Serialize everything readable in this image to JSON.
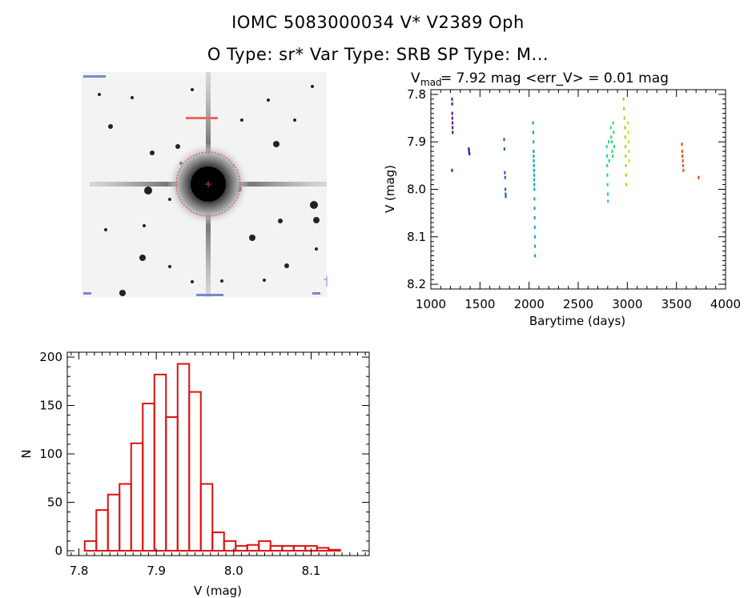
{
  "header": {
    "line1": "IOMC 5083000034    V* V2389 Oph",
    "line2": "O Type: sr*  Var Type: SRB  SP Type: M..."
  },
  "colors": {
    "histogram": "#dd1111",
    "aperture": "#ee3333",
    "axes": "#000000"
  },
  "lightcurve_header": {
    "v": "V",
    "sub": "mad",
    "text": " = 7.92 mag <err_V> = 0.01 mag"
  },
  "chart_data": [
    {
      "type": "scatter",
      "xlabel": "Barytime (days)",
      "ylabel": "V (mag)",
      "xlim": [
        1000,
        4000
      ],
      "ylim": [
        8.21,
        7.79
      ],
      "y_inverted": true,
      "xticks": [
        1000,
        1500,
        2000,
        2500,
        3000,
        3500,
        4000
      ],
      "yticks": [
        7.8,
        7.9,
        8.0,
        8.1,
        8.2
      ],
      "ytick_labels": [
        "7.8",
        "7.9",
        "8.0",
        "8.1",
        "8.2"
      ],
      "series": [
        {
          "color": "#552288",
          "points": [
            [
              1215,
              7.81
            ],
            [
              1216,
              7.82
            ],
            [
              1217,
              7.84
            ],
            [
              1218,
              7.85
            ],
            [
              1219,
              7.86
            ],
            [
              1220,
              7.87
            ],
            [
              1221,
              7.88
            ],
            [
              1215,
              7.96
            ]
          ]
        },
        {
          "color": "#441199",
          "points": [
            [
              1385,
              7.915
            ],
            [
              1388,
              7.92
            ],
            [
              1392,
              7.925
            ]
          ]
        },
        {
          "color": "#2266bb",
          "points": [
            [
              1745,
              7.895
            ],
            [
              1748,
              7.915
            ],
            [
              1752,
              7.965
            ],
            [
              1755,
              7.975
            ],
            [
              1758,
              8.0
            ],
            [
              1760,
              8.01
            ],
            [
              1762,
              8.015
            ]
          ]
        },
        {
          "color": "#11aacc",
          "points": [
            [
              2040,
              7.86
            ],
            [
              2042,
              7.88
            ],
            [
              2044,
              7.9
            ],
            [
              2045,
              7.92
            ],
            [
              2046,
              7.93
            ],
            [
              2047,
              7.94
            ],
            [
              2048,
              7.95
            ],
            [
              2049,
              7.96
            ],
            [
              2050,
              7.97
            ],
            [
              2051,
              7.98
            ],
            [
              2052,
              7.99
            ],
            [
              2053,
              8.0
            ],
            [
              2054,
              8.02
            ],
            [
              2055,
              8.04
            ],
            [
              2056,
              8.06
            ],
            [
              2057,
              8.08
            ],
            [
              2058,
              8.1
            ],
            [
              2059,
              8.12
            ],
            [
              2060,
              8.14
            ]
          ]
        },
        {
          "color": "#22cccc",
          "points": [
            [
              2790,
              7.91
            ],
            [
              2792,
              7.93
            ],
            [
              2794,
              7.95
            ],
            [
              2796,
              7.97
            ],
            [
              2798,
              7.99
            ],
            [
              2800,
              8.01
            ],
            [
              2802,
              8.025
            ],
            [
              2810,
              7.9
            ],
            [
              2815,
              7.94
            ]
          ]
        },
        {
          "color": "#33dd66",
          "points": [
            [
              2830,
              7.87
            ],
            [
              2835,
              7.89
            ],
            [
              2840,
              7.9
            ],
            [
              2845,
              7.92
            ],
            [
              2850,
              7.93
            ],
            [
              2855,
              7.86
            ],
            [
              2860,
              7.88
            ],
            [
              2865,
              7.91
            ]
          ]
        },
        {
          "color": "#99dd22",
          "points": [
            [
              2960,
              7.81
            ],
            [
              2965,
              7.83
            ],
            [
              2970,
              7.85
            ],
            [
              2975,
              7.87
            ],
            [
              2978,
              7.89
            ],
            [
              2980,
              7.91
            ],
            [
              2982,
              7.93
            ],
            [
              2984,
              7.95
            ],
            [
              2986,
              7.97
            ],
            [
              2988,
              7.99
            ]
          ]
        },
        {
          "color": "#dddd11",
          "points": [
            [
              3010,
              7.88
            ],
            [
              3012,
              7.9
            ],
            [
              3015,
              7.92
            ],
            [
              3018,
              7.94
            ],
            [
              3005,
              7.86
            ]
          ]
        },
        {
          "color": "#dd5522",
          "points": [
            [
              3555,
              7.905
            ],
            [
              3558,
              7.92
            ],
            [
              3561,
              7.93
            ],
            [
              3564,
              7.94
            ],
            [
              3567,
              7.95
            ],
            [
              3570,
              7.96
            ]
          ]
        },
        {
          "color": "#dd4411",
          "points": [
            [
              3725,
              7.975
            ]
          ]
        }
      ]
    },
    {
      "type": "bar",
      "xlabel": "V (mag)",
      "ylabel": "N",
      "xlim": [
        7.785,
        8.175
      ],
      "ylim": [
        -5,
        205
      ],
      "xticks": [
        7.8,
        7.9,
        8.0,
        8.1
      ],
      "xtick_labels": [
        "7.8",
        "7.9",
        "8.0",
        "8.1"
      ],
      "yticks": [
        0,
        50,
        100,
        150,
        200
      ],
      "bin_width": 0.015,
      "bin_starts": [
        7.8075,
        7.8225,
        7.8375,
        7.8525,
        7.8675,
        7.8825,
        7.8975,
        7.9125,
        7.9275,
        7.9425,
        7.9575,
        7.9725,
        7.9875,
        8.0025,
        8.0175,
        8.0325,
        8.0475,
        8.0625,
        8.0775,
        8.0925,
        8.1075,
        8.1225,
        8.1375
      ],
      "values": [
        10,
        42,
        58,
        69,
        111,
        152,
        182,
        138,
        193,
        164,
        69,
        19,
        10,
        5,
        6,
        10,
        5,
        5,
        5,
        5,
        3,
        1,
        0
      ]
    }
  ]
}
